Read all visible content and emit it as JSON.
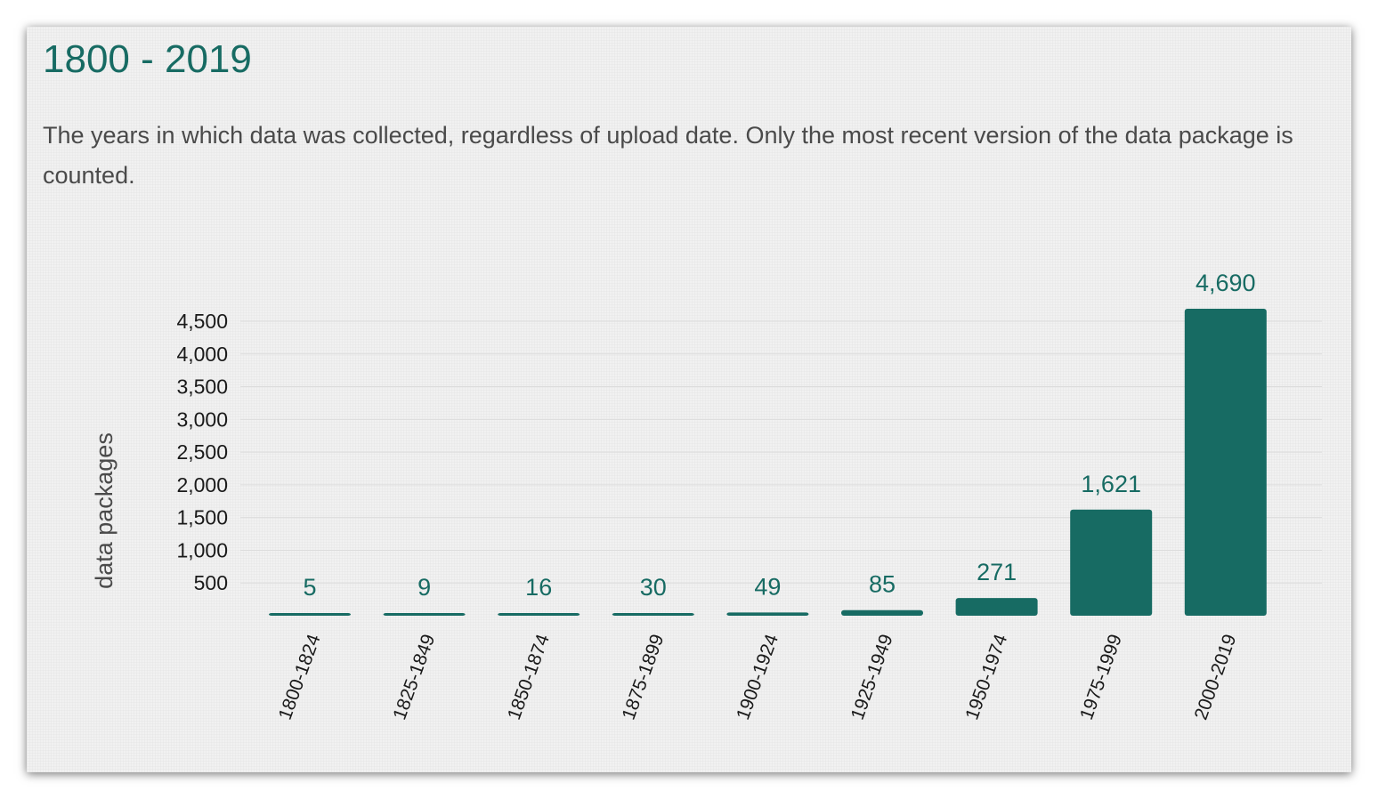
{
  "card": {
    "title": "1800 - 2019",
    "description": "The years in which data was collected, regardless of upload date. Only the most recent version of the data package is counted."
  },
  "colors": {
    "accent": "#176b63",
    "bar": "#176b63",
    "background": "#f1f1f1",
    "grid": "#dcdcdc"
  },
  "chart_data": {
    "type": "bar",
    "title": "1800 - 2019",
    "xlabel": "",
    "ylabel": "data packages",
    "categories": [
      "1800-1824",
      "1825-1849",
      "1850-1874",
      "1875-1899",
      "1900-1924",
      "1925-1949",
      "1950-1974",
      "1975-1999",
      "2000-2019"
    ],
    "values": [
      5,
      9,
      16,
      30,
      49,
      85,
      271,
      1621,
      4690
    ],
    "value_labels": [
      "5",
      "9",
      "16",
      "30",
      "49",
      "85",
      "271",
      "1,621",
      "4,690"
    ],
    "yticks": [
      500,
      1000,
      1500,
      2000,
      2500,
      3000,
      3500,
      4000,
      4500
    ],
    "ytick_labels": [
      "500",
      "1,000",
      "1,500",
      "2,000",
      "2,500",
      "3,000",
      "3,500",
      "4,000",
      "4,500"
    ],
    "ylim": [
      0,
      4500
    ],
    "grid": true,
    "legend": "none"
  }
}
